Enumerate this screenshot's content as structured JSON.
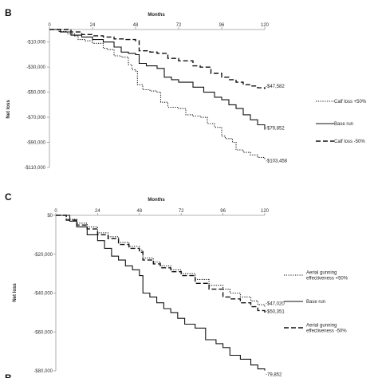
{
  "chart_data": [
    {
      "panel": "B",
      "type": "line",
      "xlabel": "Months",
      "ylabel": "Net loss",
      "xlim": [
        0,
        120
      ],
      "ylim": [
        -110000,
        0
      ],
      "x_ticks": [
        0,
        24,
        48,
        72,
        96,
        120
      ],
      "y_ticks": [
        -10000,
        -30000,
        -50000,
        -70000,
        -90000,
        -110000
      ],
      "y_tick_labels": [
        "-$10,000",
        "-$30,000",
        "-$50,000",
        "-$70,000",
        "-$90,000",
        "-$110,000"
      ],
      "legend_position": "right",
      "series": [
        {
          "name": "Calf loss +50%",
          "style": "dotted",
          "end_label": "-$103,458",
          "points": [
            [
              0,
              0
            ],
            [
              5,
              -1500
            ],
            [
              10,
              -3500
            ],
            [
              14,
              -5000
            ],
            [
              16,
              -8000
            ],
            [
              20,
              -9000
            ],
            [
              24,
              -11000
            ],
            [
              30,
              -15000
            ],
            [
              32,
              -16000
            ],
            [
              36,
              -21000
            ],
            [
              40,
              -22000
            ],
            [
              44,
              -28000
            ],
            [
              46,
              -32000
            ],
            [
              48,
              -33000
            ],
            [
              49,
              -44000
            ],
            [
              52,
              -48000
            ],
            [
              56,
              -49000
            ],
            [
              60,
              -50000
            ],
            [
              62,
              -58000
            ],
            [
              66,
              -62000
            ],
            [
              72,
              -63000
            ],
            [
              76,
              -68000
            ],
            [
              80,
              -69000
            ],
            [
              84,
              -70000
            ],
            [
              88,
              -75000
            ],
            [
              92,
              -78000
            ],
            [
              96,
              -85000
            ],
            [
              98,
              -87000
            ],
            [
              102,
              -90000
            ],
            [
              104,
              -96000
            ],
            [
              108,
              -98000
            ],
            [
              112,
              -100000
            ],
            [
              116,
              -102000
            ],
            [
              120,
              -103458
            ]
          ]
        },
        {
          "name": "Base run",
          "style": "solid",
          "end_label": "-$79,852",
          "points": [
            [
              0,
              0
            ],
            [
              6,
              -2000
            ],
            [
              12,
              -4500
            ],
            [
              18,
              -6000
            ],
            [
              24,
              -8000
            ],
            [
              30,
              -10000
            ],
            [
              36,
              -14000
            ],
            [
              40,
              -18000
            ],
            [
              44,
              -19000
            ],
            [
              48,
              -20000
            ],
            [
              50,
              -27000
            ],
            [
              54,
              -29000
            ],
            [
              60,
              -31000
            ],
            [
              64,
              -38000
            ],
            [
              68,
              -40000
            ],
            [
              72,
              -42000
            ],
            [
              80,
              -46000
            ],
            [
              86,
              -50000
            ],
            [
              92,
              -54000
            ],
            [
              96,
              -56000
            ],
            [
              100,
              -60000
            ],
            [
              104,
              -63000
            ],
            [
              108,
              -68000
            ],
            [
              112,
              -72000
            ],
            [
              116,
              -76000
            ],
            [
              120,
              -79852
            ]
          ]
        },
        {
          "name": "Calf loss -50%",
          "style": "dashed",
          "end_label": "-$47,582",
          "points": [
            [
              0,
              0
            ],
            [
              12,
              -2000
            ],
            [
              18,
              -4000
            ],
            [
              24,
              -5000
            ],
            [
              30,
              -6000
            ],
            [
              36,
              -7500
            ],
            [
              42,
              -8000
            ],
            [
              48,
              -9000
            ],
            [
              50,
              -17000
            ],
            [
              56,
              -18000
            ],
            [
              60,
              -19000
            ],
            [
              66,
              -23000
            ],
            [
              72,
              -25000
            ],
            [
              80,
              -29000
            ],
            [
              84,
              -30000
            ],
            [
              90,
              -35000
            ],
            [
              96,
              -38000
            ],
            [
              100,
              -40000
            ],
            [
              104,
              -42000
            ],
            [
              108,
              -44000
            ],
            [
              112,
              -45000
            ],
            [
              116,
              -46500
            ],
            [
              120,
              -47582
            ]
          ]
        }
      ]
    },
    {
      "panel": "C",
      "type": "line",
      "xlabel": "Months",
      "ylabel": "Net loss",
      "xlim": [
        0,
        120
      ],
      "ylim": [
        -80000,
        0
      ],
      "x_ticks": [
        0,
        24,
        48,
        72,
        96,
        120
      ],
      "y_ticks": [
        0,
        -20000,
        -40000,
        -60000,
        -80000
      ],
      "y_tick_labels": [
        "$0",
        "-$20,000",
        "-$40,000",
        "-$60,000",
        "-$80,000"
      ],
      "legend_position": "right",
      "series": [
        {
          "name": "Aerial gunning effectiveness +50%",
          "legend_lines": [
            "Aerial gunning",
            "effectiveness +50%"
          ],
          "style": "dotted",
          "end_label": "-$47,020",
          "points": [
            [
              0,
              0
            ],
            [
              6,
              -2000
            ],
            [
              12,
              -4000
            ],
            [
              18,
              -6000
            ],
            [
              24,
              -9000
            ],
            [
              30,
              -11000
            ],
            [
              36,
              -14000
            ],
            [
              42,
              -16000
            ],
            [
              48,
              -18000
            ],
            [
              50,
              -22000
            ],
            [
              56,
              -24000
            ],
            [
              60,
              -26000
            ],
            [
              66,
              -28000
            ],
            [
              72,
              -30000
            ],
            [
              80,
              -33000
            ],
            [
              88,
              -36000
            ],
            [
              96,
              -38000
            ],
            [
              100,
              -40000
            ],
            [
              106,
              -42000
            ],
            [
              112,
              -44000
            ],
            [
              116,
              -46000
            ],
            [
              120,
              -47020
            ]
          ]
        },
        {
          "name": "Base run",
          "legend_lines": [
            "Base run"
          ],
          "style": "solid",
          "end_label": "-79,852",
          "points": [
            [
              0,
              0
            ],
            [
              8,
              -3000
            ],
            [
              12,
              -6000
            ],
            [
              18,
              -10000
            ],
            [
              24,
              -13000
            ],
            [
              28,
              -17000
            ],
            [
              32,
              -21000
            ],
            [
              36,
              -23000
            ],
            [
              40,
              -26000
            ],
            [
              44,
              -28000
            ],
            [
              48,
              -31000
            ],
            [
              50,
              -40000
            ],
            [
              54,
              -42000
            ],
            [
              58,
              -45000
            ],
            [
              62,
              -48000
            ],
            [
              66,
              -50000
            ],
            [
              70,
              -53000
            ],
            [
              74,
              -56000
            ],
            [
              80,
              -58000
            ],
            [
              86,
              -64000
            ],
            [
              92,
              -66000
            ],
            [
              96,
              -68000
            ],
            [
              100,
              -72000
            ],
            [
              106,
              -74000
            ],
            [
              112,
              -77000
            ],
            [
              116,
              -79000
            ],
            [
              120,
              -79852
            ]
          ]
        },
        {
          "name": "Aerial gunning effectiveness -50%",
          "legend_lines": [
            "Aerial gunning",
            "effectiveness -50%"
          ],
          "style": "dashed",
          "end_label": "-$50,351",
          "points": [
            [
              0,
              0
            ],
            [
              6,
              -2500
            ],
            [
              12,
              -5000
            ],
            [
              18,
              -7000
            ],
            [
              24,
              -10000
            ],
            [
              30,
              -12000
            ],
            [
              36,
              -15000
            ],
            [
              42,
              -17000
            ],
            [
              48,
              -19000
            ],
            [
              50,
              -23000
            ],
            [
              56,
              -25000
            ],
            [
              60,
              -27000
            ],
            [
              66,
              -29000
            ],
            [
              72,
              -31000
            ],
            [
              80,
              -35000
            ],
            [
              88,
              -38000
            ],
            [
              96,
              -42000
            ],
            [
              100,
              -43000
            ],
            [
              106,
              -45000
            ],
            [
              112,
              -47000
            ],
            [
              116,
              -49000
            ],
            [
              120,
              -50351
            ]
          ]
        }
      ]
    }
  ],
  "bottom_partial_label": "B"
}
